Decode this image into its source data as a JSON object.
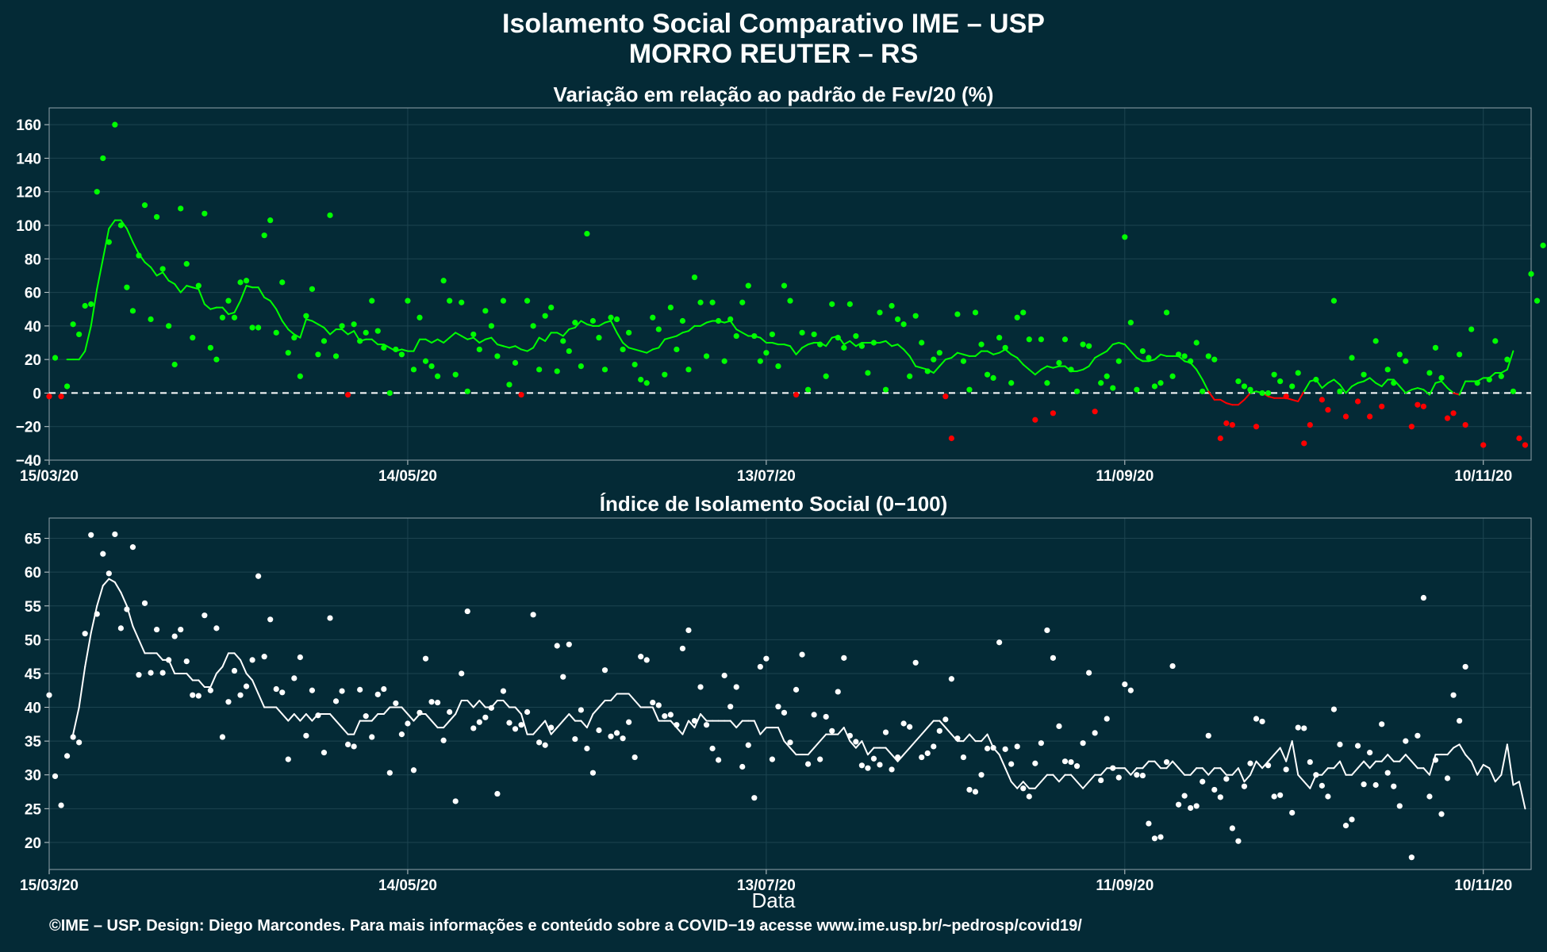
{
  "header": {
    "title_line1": "Isolamento Social Comparativo IME – USP",
    "title_line2": "MORRO REUTER – RS"
  },
  "footer": {
    "credit": "©IME – USP. Design: Diego Marcondes. Para mais informações e conteúdo sobre a COVID−19 acesse www.ime.usp.br/~pedrosp/covid19/"
  },
  "colors": {
    "background": "#042a36",
    "positive": "#00ff00",
    "negative": "#ff0000",
    "index": "#ffffff",
    "grid": "#1d4450"
  },
  "chart_data": [
    {
      "type": "scatter",
      "title": "Variação em relação ao padrão de Fev/20 (%)",
      "xlabel": "",
      "ylabel": "",
      "x_day0": "15/03/20",
      "x_tick_labels": [
        "15/03/20",
        "14/05/20",
        "13/07/20",
        "11/09/20",
        "10/11/20"
      ],
      "x_ticks": [
        0,
        60,
        120,
        180,
        240
      ],
      "xlim": [
        0,
        248
      ],
      "ylim": [
        -40,
        170
      ],
      "y_ticks": [
        -40,
        -20,
        0,
        20,
        40,
        60,
        80,
        100,
        120,
        140,
        160
      ],
      "reference_line": 0,
      "series": [
        {
          "role": "daily",
          "values": [
            -2,
            21,
            -2,
            4,
            41,
            35,
            52,
            53,
            120,
            140,
            90,
            160,
            100,
            63,
            49,
            82,
            112,
            44,
            105,
            74,
            40,
            17,
            110,
            77,
            33,
            64,
            107,
            27,
            20,
            45,
            55,
            45,
            66,
            67,
            39,
            39,
            94,
            103,
            36,
            66,
            24,
            33,
            10,
            46,
            62,
            23,
            31,
            106,
            22,
            40,
            -1,
            41,
            31,
            36,
            55,
            37,
            27,
            0,
            26,
            23,
            55,
            14,
            45,
            19,
            16,
            10,
            67,
            55,
            11,
            54,
            1,
            35,
            26,
            49,
            40,
            22,
            55,
            5,
            18,
            -1,
            55,
            40,
            14,
            46,
            51,
            13,
            31,
            25,
            42,
            16,
            95,
            43,
            33,
            14,
            45,
            44,
            26,
            36,
            17,
            8,
            6,
            45,
            38,
            11,
            51,
            26,
            43,
            14,
            69,
            54,
            22,
            54,
            43,
            19,
            44,
            34,
            54,
            64,
            34,
            19,
            24,
            35,
            16,
            64,
            55,
            -1,
            36,
            2,
            35,
            29,
            10,
            53,
            33,
            27,
            53,
            34,
            28,
            12,
            30,
            48,
            2,
            52,
            44,
            41,
            10,
            46,
            30,
            13,
            20,
            24,
            -2,
            -27,
            47,
            19,
            2,
            48,
            29,
            11,
            9,
            33,
            27,
            6,
            45,
            48,
            32,
            -16,
            32,
            6,
            -12,
            18,
            32,
            14,
            1,
            29,
            28,
            -11,
            6,
            10,
            3,
            19,
            93,
            42,
            2,
            25,
            21,
            4,
            6,
            48,
            10,
            23,
            22,
            19,
            30,
            1,
            22,
            20,
            -27,
            -18,
            -19,
            7,
            4,
            2,
            -20,
            0,
            0,
            11,
            7,
            -2,
            4,
            12,
            -30,
            -19,
            8,
            -4,
            -10,
            55,
            1,
            -14,
            21,
            -5,
            11,
            -14,
            31,
            -8,
            14,
            6,
            23,
            19,
            -20,
            -7,
            -8,
            12,
            27,
            9,
            -15,
            -12,
            23,
            -19,
            38,
            6,
            -31,
            8,
            31,
            10,
            20,
            1,
            -27,
            -31,
            71,
            55,
            88
          ]
        },
        {
          "role": "moving_average",
          "values": [
            null,
            null,
            null,
            20,
            20,
            20,
            25,
            40,
            62,
            80,
            98,
            103,
            103,
            98,
            90,
            83,
            78,
            75,
            70,
            72,
            67,
            65,
            60,
            64,
            63,
            62,
            53,
            50,
            51,
            51,
            47,
            48,
            55,
            64,
            63,
            63,
            57,
            55,
            50,
            43,
            38,
            35,
            33,
            44,
            43,
            41,
            39,
            35,
            38,
            38,
            35,
            37,
            31,
            32,
            32,
            29,
            29,
            27,
            25,
            26,
            25,
            25,
            32,
            32,
            30,
            32,
            30,
            33,
            36,
            34,
            32,
            33,
            30,
            32,
            33,
            29,
            28,
            27,
            28,
            26,
            25,
            27,
            33,
            31,
            36,
            36,
            34,
            38,
            39,
            43,
            41,
            40,
            40,
            42,
            43,
            36,
            30,
            27,
            26,
            25,
            24,
            26,
            27,
            32,
            33,
            34,
            36,
            37,
            40,
            40,
            42,
            43,
            43,
            42,
            43,
            38,
            36,
            34,
            34,
            33,
            30,
            30,
            29,
            29,
            28,
            23,
            27,
            29,
            30,
            30,
            28,
            33,
            34,
            29,
            31,
            28,
            30,
            30,
            30,
            30,
            31,
            28,
            29,
            26,
            22,
            16,
            15,
            14,
            12,
            16,
            20,
            21,
            24,
            23,
            22,
            22,
            25,
            25,
            23,
            24,
            26,
            23,
            21,
            17,
            14,
            11,
            14,
            16,
            15,
            16,
            16,
            13,
            13,
            14,
            16,
            21,
            23,
            25,
            29,
            30,
            29,
            25,
            21,
            19,
            19,
            20,
            23,
            22,
            22,
            22,
            19,
            18,
            14,
            8,
            1,
            -4,
            -4,
            -6,
            -7,
            -7,
            -4,
            0,
            1,
            0,
            -2,
            -3,
            -3,
            -3,
            -4,
            -5,
            1,
            7,
            8,
            3,
            6,
            8,
            5,
            0,
            4,
            6,
            7,
            9,
            6,
            4,
            8,
            8,
            4,
            0,
            2,
            3,
            2,
            -1,
            6,
            7,
            3,
            0,
            -1,
            7,
            7,
            7,
            9,
            9,
            12,
            12,
            14,
            25
          ]
        }
      ]
    },
    {
      "type": "scatter",
      "title": "Índice de Isolamento Social (0−100)",
      "xlabel": "Data",
      "ylabel": "",
      "x_day0": "15/03/20",
      "x_tick_labels": [
        "15/03/20",
        "14/05/20",
        "13/07/20",
        "11/09/20",
        "10/11/20"
      ],
      "x_ticks": [
        0,
        60,
        120,
        180,
        240
      ],
      "xlim": [
        0,
        248
      ],
      "ylim": [
        16,
        68
      ],
      "y_ticks": [
        20,
        25,
        30,
        35,
        40,
        45,
        50,
        55,
        60,
        65
      ],
      "series": [
        {
          "role": "daily",
          "values": [
            41.8,
            29.8,
            25.5,
            32.8,
            35.6,
            34.8,
            50.9,
            65.5,
            53.8,
            62.7,
            59.8,
            65.6,
            51.7,
            54.5,
            63.7,
            44.8,
            55.4,
            45.1,
            51.5,
            45.1,
            47.0,
            50.5,
            51.5,
            46.8,
            41.8,
            41.7,
            53.6,
            42.5,
            51.7,
            35.6,
            40.8,
            45.4,
            41.8,
            43.1,
            47.0,
            59.4,
            47.5,
            53.0,
            42.7,
            42.2,
            32.3,
            44.3,
            47.4,
            35.8,
            42.5,
            38.8,
            33.3,
            53.2,
            40.9,
            42.4,
            34.5,
            34.2,
            42.6,
            38.7,
            35.6,
            41.9,
            42.7,
            30.3,
            40.6,
            36.0,
            37.6,
            30.7,
            39.2,
            47.2,
            40.8,
            40.7,
            35.1,
            39.3,
            26.1,
            45.0,
            54.2,
            36.9,
            37.8,
            38.5,
            39.9,
            27.2,
            42.4,
            37.7,
            36.8,
            37.4,
            39.3,
            53.7,
            34.8,
            34.4,
            37.0,
            49.1,
            44.5,
            49.3,
            35.3,
            39.6,
            33.9,
            30.3,
            36.6,
            45.5,
            35.7,
            36.2,
            35.4,
            37.8,
            32.6,
            47.5,
            47.0,
            40.7,
            40.3,
            38.7,
            38.9,
            37.4,
            48.7,
            51.4,
            38.0,
            43.0,
            37.4,
            33.9,
            32.2,
            44.7,
            40.1,
            43.0,
            31.2,
            34.4,
            26.6,
            46.0,
            47.2,
            32.3,
            40.1,
            39.2,
            34.8,
            42.6,
            47.8,
            31.6,
            38.9,
            32.3,
            38.6,
            36.5,
            42.3,
            47.3,
            35.8,
            34.9,
            31.4,
            31.0,
            32.4,
            31.5,
            36.3,
            30.8,
            32.6,
            37.6,
            37.1,
            46.6,
            32.6,
            33.2,
            34.2,
            36.5,
            38.2,
            44.2,
            35.4,
            32.6,
            27.8,
            27.5,
            30.0,
            33.9,
            34.0,
            49.6,
            33.8,
            31.6,
            34.2,
            28.0,
            26.8,
            31.7,
            34.7,
            51.4,
            47.3,
            37.2,
            32.0,
            31.9,
            31.3,
            34.7,
            45.1,
            36.2,
            29.2,
            38.3,
            31.0,
            29.6,
            43.4,
            42.5,
            30.0,
            29.9,
            22.8,
            20.6,
            20.8,
            31.9,
            46.1,
            25.6,
            26.9,
            25.1,
            25.4,
            29.0,
            35.8,
            27.8,
            26.7,
            29.4,
            22.1,
            20.2,
            28.3,
            31.7,
            38.3,
            37.9,
            31.4,
            26.8,
            27.0,
            30.8,
            24.4,
            37.0,
            36.9,
            31.9,
            30.0,
            28.4,
            26.8,
            39.7,
            34.5,
            22.5,
            23.4,
            34.3,
            28.6,
            33.3,
            28.5,
            37.5,
            30.3,
            28.3,
            25.4,
            35.0,
            17.8,
            35.8,
            56.2,
            26.8,
            32.2,
            24.2,
            29.5,
            41.8,
            38.0,
            46.0
          ]
        },
        {
          "role": "moving_average",
          "values": [
            null,
            null,
            null,
            null,
            36,
            40,
            46,
            51,
            55,
            58,
            59,
            58.5,
            57,
            55,
            52,
            50,
            48,
            48,
            48,
            47,
            47,
            45,
            45,
            45,
            44,
            44,
            43,
            43,
            45,
            46,
            48,
            48,
            47,
            45,
            44,
            42,
            40,
            40,
            40,
            39,
            38,
            39,
            38,
            39,
            38,
            39,
            39,
            39,
            38,
            37,
            36,
            36,
            38,
            38,
            38,
            39,
            39,
            40,
            40,
            40,
            39,
            38,
            39,
            39,
            38,
            37,
            37,
            38,
            39,
            41,
            41,
            40,
            41,
            40,
            40,
            41,
            41,
            40,
            40,
            39,
            36,
            36,
            37,
            38,
            36,
            37,
            38,
            39,
            38,
            38,
            37,
            39,
            40,
            41,
            41,
            42,
            42,
            42,
            41,
            40,
            40,
            40,
            38,
            38,
            38,
            37,
            36,
            38,
            37,
            39,
            38,
            38,
            38,
            38,
            38,
            37,
            38,
            38,
            38,
            36,
            37,
            37,
            37,
            35,
            34,
            33,
            33,
            33,
            34,
            35,
            36,
            36,
            36,
            37,
            35,
            34,
            35,
            33,
            34,
            34,
            34,
            33,
            32,
            33,
            34,
            35,
            36,
            37,
            38,
            38,
            37,
            36,
            35,
            35,
            36,
            35,
            35,
            36,
            34,
            33,
            31,
            29,
            28,
            29,
            28,
            28,
            29,
            30,
            30,
            29,
            30,
            30,
            29,
            28,
            29,
            30,
            30,
            31,
            31,
            31,
            31,
            30,
            31,
            31,
            32,
            32,
            31,
            31,
            32,
            31,
            30,
            30,
            31,
            31,
            30,
            31,
            31,
            30,
            30,
            31,
            29,
            30,
            32,
            31,
            32,
            33,
            34,
            32,
            35,
            30,
            29,
            28,
            30,
            30,
            31,
            31,
            32,
            30,
            30,
            31,
            32,
            31,
            32,
            32,
            33,
            32,
            32,
            33,
            32,
            31,
            31,
            30,
            33,
            33,
            33,
            34,
            34.5,
            33,
            32,
            30,
            31.5,
            31,
            29,
            30,
            34.5,
            28.5,
            29,
            25
          ]
        }
      ]
    }
  ]
}
